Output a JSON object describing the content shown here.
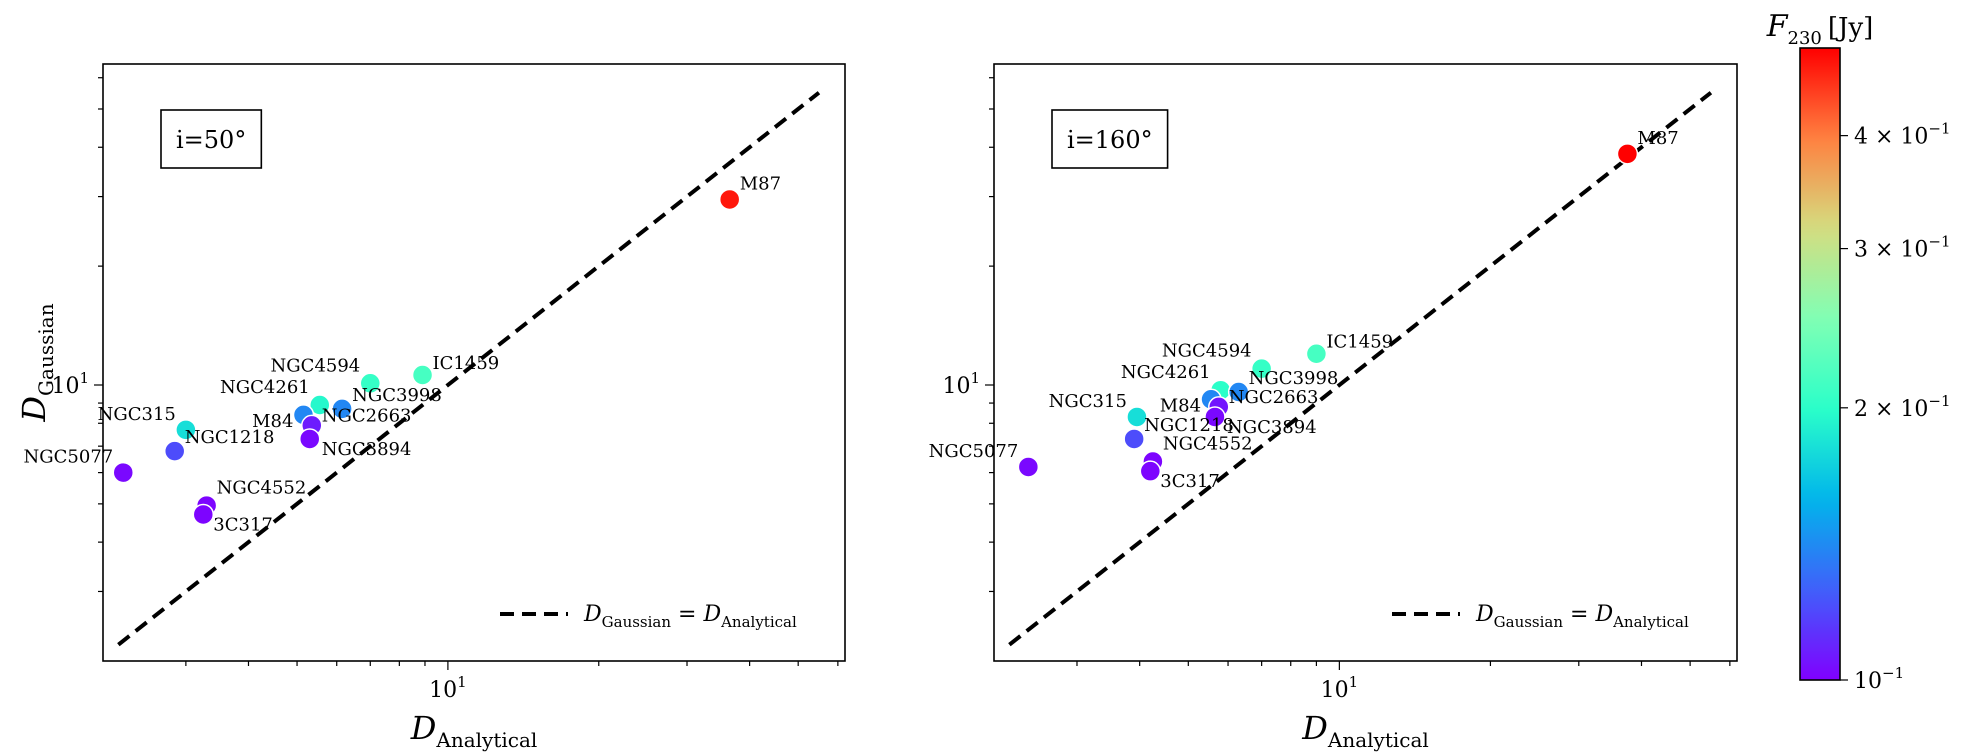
{
  "chart_data": [
    {
      "type": "scatter",
      "panel_label": "i=50°",
      "xlabel": "D",
      "xlabel_sub": "Analytical",
      "ylabel": "D",
      "ylabel_sub": "Gaussian",
      "xscale": "log",
      "yscale": "log",
      "xlim": [
        2.05,
        62
      ],
      "ylim": [
        2.0,
        65
      ],
      "x_major_tick": {
        "value": 10,
        "label": "10",
        "sup": "1"
      },
      "y_major_tick": {
        "value": 10,
        "label": "10",
        "sup": "1"
      },
      "legend": {
        "label": "D_Gaussian = D_Analytical",
        "lhs_sub": "Gaussian",
        "rhs_sub": "Analytical",
        "placement": "lower right"
      },
      "reference_line": {
        "x": [
          2.2,
          55
        ],
        "y": [
          2.2,
          55
        ],
        "style": "dashed"
      },
      "points": [
        {
          "name": "M87",
          "x": 36.5,
          "y": 29.5,
          "flux": 0.48
        },
        {
          "name": "IC1459",
          "x": 8.9,
          "y": 10.6,
          "flux": 0.215
        },
        {
          "name": "NGC4594",
          "x": 7.0,
          "y": 10.1,
          "flux": 0.205
        },
        {
          "name": "NGC4261",
          "x": 5.55,
          "y": 8.9,
          "flux": 0.195
        },
        {
          "name": "NGC3998",
          "x": 6.15,
          "y": 8.7,
          "flux": 0.14
        },
        {
          "name": "M84",
          "x": 5.15,
          "y": 8.4,
          "flux": 0.14
        },
        {
          "name": "NGC2663",
          "x": 5.35,
          "y": 7.9,
          "flux": 0.107
        },
        {
          "name": "NGC3894",
          "x": 5.3,
          "y": 7.3,
          "flux": 0.102
        },
        {
          "name": "NGC315",
          "x": 3.0,
          "y": 7.7,
          "flux": 0.18
        },
        {
          "name": "NGC1218",
          "x": 2.85,
          "y": 6.8,
          "flux": 0.12
        },
        {
          "name": "NGC5077",
          "x": 2.25,
          "y": 6.0,
          "flux": 0.102
        },
        {
          "name": "NGC4552",
          "x": 3.3,
          "y": 4.95,
          "flux": 0.101
        },
        {
          "name": "3C317",
          "x": 3.25,
          "y": 4.7,
          "flux": 0.101
        }
      ]
    },
    {
      "type": "scatter",
      "panel_label": "i=160°",
      "xlabel": "D",
      "xlabel_sub": "Analytical",
      "ylabel": "",
      "ylabel_sub": "",
      "xscale": "log",
      "yscale": "log",
      "xlim": [
        2.05,
        62
      ],
      "ylim": [
        2.0,
        65
      ],
      "x_major_tick": {
        "value": 10,
        "label": "10",
        "sup": "1"
      },
      "y_major_tick": {
        "value": 10,
        "label": "10",
        "sup": "1"
      },
      "legend": {
        "label": "D_Gaussian = D_Analytical",
        "lhs_sub": "Gaussian",
        "rhs_sub": "Analytical",
        "placement": "lower right"
      },
      "reference_line": {
        "x": [
          2.2,
          55
        ],
        "y": [
          2.2,
          55
        ],
        "style": "dashed"
      },
      "points": [
        {
          "name": "M87",
          "x": 37.5,
          "y": 38.5,
          "flux": 0.5
        },
        {
          "name": "IC1459",
          "x": 9.0,
          "y": 12.0,
          "flux": 0.215
        },
        {
          "name": "NGC4594",
          "x": 7.0,
          "y": 11.0,
          "flux": 0.205
        },
        {
          "name": "NGC4261",
          "x": 5.8,
          "y": 9.7,
          "flux": 0.2
        },
        {
          "name": "NGC3998",
          "x": 6.3,
          "y": 9.6,
          "flux": 0.14
        },
        {
          "name": "M84",
          "x": 5.55,
          "y": 9.2,
          "flux": 0.14
        },
        {
          "name": "NGC2663",
          "x": 5.75,
          "y": 8.8,
          "flux": 0.105
        },
        {
          "name": "NGC3894",
          "x": 5.65,
          "y": 8.3,
          "flux": 0.102
        },
        {
          "name": "NGC315",
          "x": 3.95,
          "y": 8.3,
          "flux": 0.18
        },
        {
          "name": "NGC1218",
          "x": 3.9,
          "y": 7.3,
          "flux": 0.12
        },
        {
          "name": "NGC5077",
          "x": 2.4,
          "y": 6.2,
          "flux": 0.102
        },
        {
          "name": "NGC4552",
          "x": 4.25,
          "y": 6.4,
          "flux": 0.101
        },
        {
          "name": "3C317",
          "x": 4.2,
          "y": 6.05,
          "flux": 0.101
        }
      ]
    }
  ],
  "colorbar": {
    "label": "F",
    "label_sub": "230",
    "label_unit": "[Jy]",
    "colormap": "rainbow",
    "scale": "log",
    "vmin": 0.1,
    "vmax": 0.5,
    "ticks": [
      {
        "value": 0.1,
        "label": "10",
        "sup": "−1"
      },
      {
        "value": 0.2,
        "label": "2 × 10",
        "sup": "−1"
      },
      {
        "value": 0.3,
        "label": "3 × 10",
        "sup": "−1"
      },
      {
        "value": 0.4,
        "label": "4 × 10",
        "sup": "−1"
      }
    ]
  },
  "colors": {
    "colormap_stops": [
      "#8000ff",
      "#4060fa",
      "#00b5eb",
      "#2affc9",
      "#80ffb4",
      "#d4dd80",
      "#ff8040",
      "#ff0000"
    ]
  }
}
